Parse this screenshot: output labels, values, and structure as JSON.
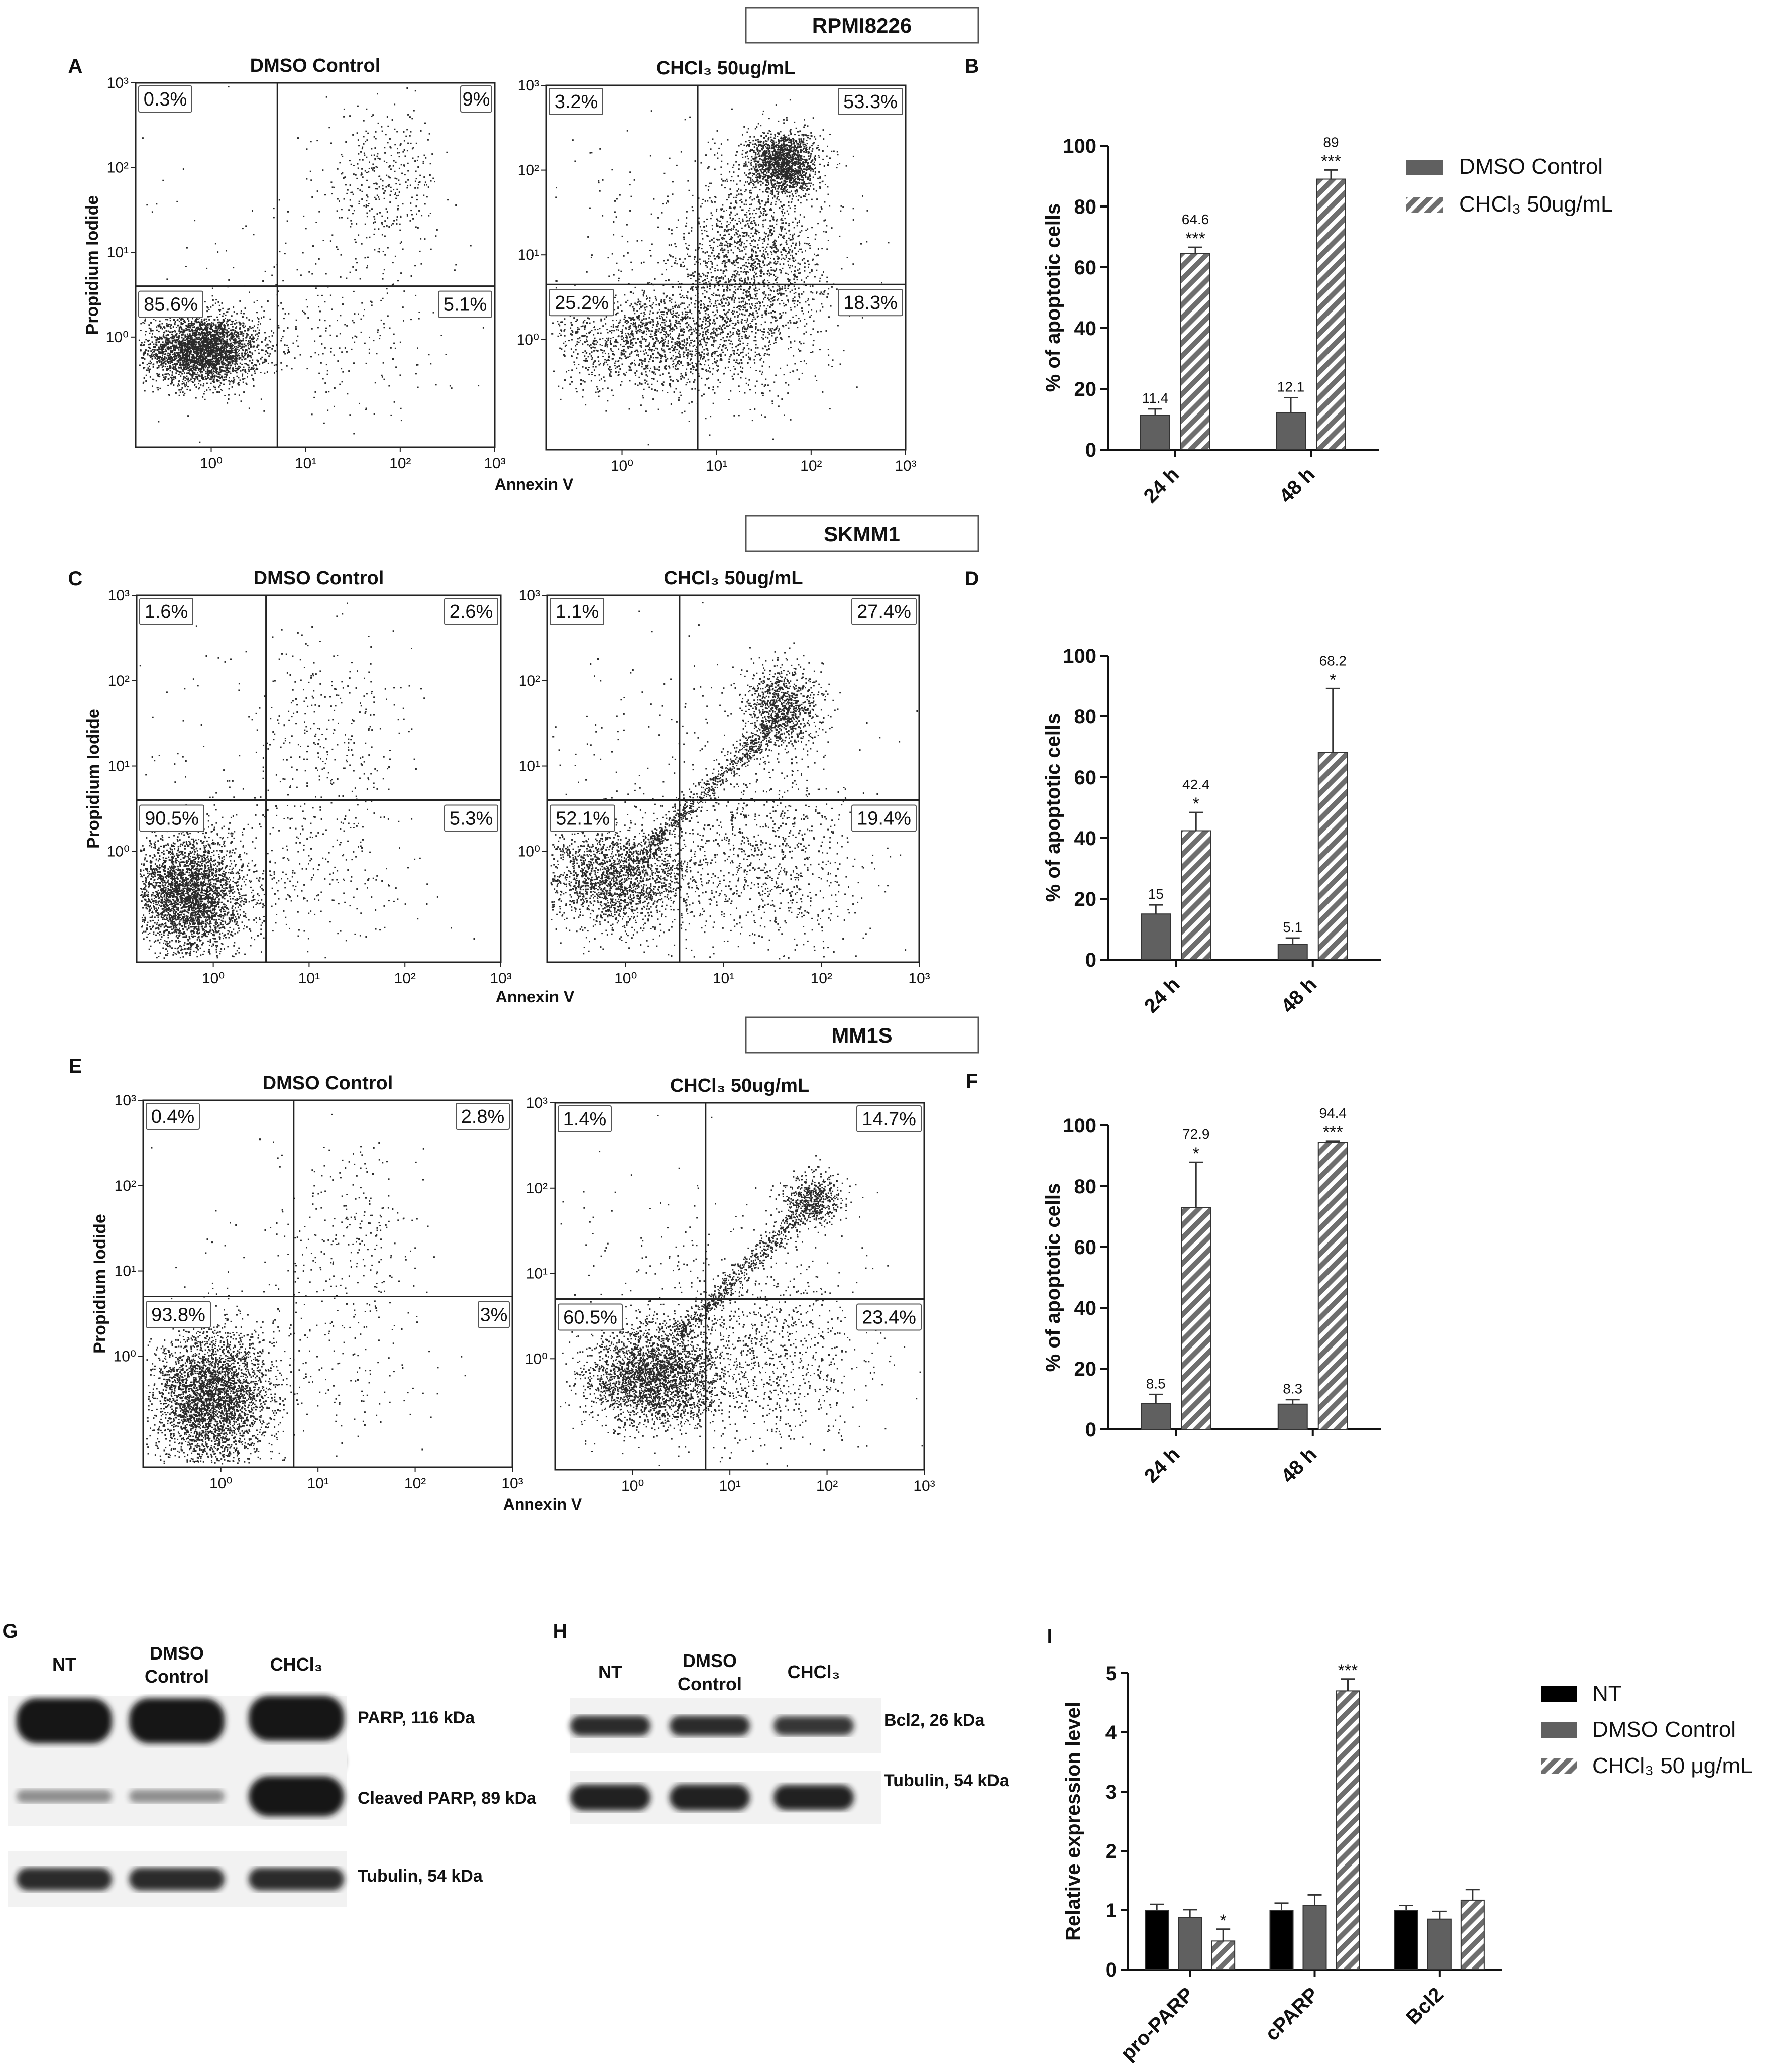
{
  "figure": {
    "cell_lines": [
      "RPMI8226",
      "SKMM1",
      "MM1S"
    ],
    "panel_letters": [
      "A",
      "B",
      "C",
      "D",
      "E",
      "F",
      "G",
      "H",
      "I"
    ],
    "colors": {
      "dmso_bar": "#606060",
      "chcl3_bar": "#8a8a8a",
      "nt_bar": "#000000",
      "axis": "#111111",
      "dots": "#2a2a2a",
      "blot_band": "#181818",
      "blot_bg": "#f2f2f2"
    }
  },
  "chart_data": [
    {
      "panel": "A",
      "type": "scatter",
      "cell_line": "RPMI8226",
      "title": "DMSO Control",
      "xlabel": "",
      "ylabel": "Propidium Iodide",
      "x_scale": "log",
      "y_scale": "log",
      "x_ticks": [
        "10⁰",
        "10¹",
        "10²",
        "10³"
      ],
      "y_ticks": [
        "10⁰",
        "10¹",
        "10²",
        "10³"
      ],
      "quadrants": {
        "upper_left": "0.3%",
        "upper_right": "9%",
        "lower_left": "85.6%",
        "lower_right": "5.1%"
      },
      "x_gate_log": 0.7,
      "y_gate_log": 0.6,
      "populations": [
        {
          "cx": -0.1,
          "cy": -0.15,
          "sx": 0.3,
          "sy": 0.2,
          "n": 3000
        },
        {
          "cx": 1.8,
          "cy": 1.8,
          "sx": 0.3,
          "sy": 0.45,
          "n": 400
        },
        {
          "cx": 1.3,
          "cy": 0.0,
          "sx": 0.6,
          "sy": 0.5,
          "n": 220
        },
        {
          "cx": 0.3,
          "cy": 0.8,
          "sx": 0.8,
          "sy": 0.8,
          "n": 80
        }
      ]
    },
    {
      "panel": "A",
      "type": "scatter",
      "cell_line": "RPMI8226",
      "title": "CHCl₃ 50ug/mL",
      "xlabel": "Annexin V",
      "ylabel": "",
      "x_scale": "log",
      "y_scale": "log",
      "x_ticks": [
        "10⁰",
        "10¹",
        "10²",
        "10³"
      ],
      "y_ticks": [
        "10⁰",
        "10¹",
        "10²",
        "10³"
      ],
      "quadrants": {
        "upper_left": "3.2%",
        "upper_right": "53.3%",
        "lower_left": "25.2%",
        "lower_right": "18.3%"
      },
      "x_gate_log": 0.8,
      "y_gate_log": 0.65,
      "populations": [
        {
          "cx": 0.3,
          "cy": 0.0,
          "sx": 0.55,
          "sy": 0.3,
          "n": 1400
        },
        {
          "cx": 1.7,
          "cy": 2.1,
          "sx": 0.18,
          "sy": 0.18,
          "n": 1500
        },
        {
          "cx": 1.45,
          "cy": 1.1,
          "sx": 0.35,
          "sy": 0.55,
          "n": 1200
        },
        {
          "cx": 1.2,
          "cy": 0.3,
          "sx": 0.5,
          "sy": 0.5,
          "n": 800
        },
        {
          "cx": 0.5,
          "cy": 1.2,
          "sx": 0.7,
          "sy": 0.8,
          "n": 200
        }
      ]
    },
    {
      "panel": "B",
      "type": "bar",
      "cell_line": "RPMI8226",
      "categories": [
        "24 h",
        "48 h"
      ],
      "ylabel": "% of apoptotic cells",
      "ylim": [
        0,
        100
      ],
      "yticks": [
        "0",
        "20",
        "40",
        "60",
        "80",
        "100"
      ],
      "series": [
        {
          "name": "DMSO Control",
          "values": [
            11.4,
            12.1
          ],
          "errors": [
            2,
            5
          ],
          "labels": [
            "11.4",
            "12.1"
          ],
          "sig": [
            "",
            ""
          ]
        },
        {
          "name": "CHCl₃ 50ug/mL",
          "values": [
            64.6,
            89
          ],
          "errors": [
            2,
            3
          ],
          "labels": [
            "64.6",
            "89"
          ],
          "sig": [
            "***",
            "***"
          ]
        }
      ]
    },
    {
      "panel": "C",
      "type": "scatter",
      "cell_line": "SKMM1",
      "title": "DMSO Control",
      "xlabel": "",
      "ylabel": "Propidium Iodide",
      "x_scale": "log",
      "y_scale": "log",
      "x_ticks": [
        "10⁰",
        "10¹",
        "10²",
        "10³"
      ],
      "y_ticks": [
        "10⁰",
        "10¹",
        "10²",
        "10³"
      ],
      "quadrants": {
        "upper_left": "1.6%",
        "upper_right": "2.6%",
        "lower_left": "90.5%",
        "lower_right": "5.3%"
      },
      "x_gate_log": 0.55,
      "y_gate_log": 0.6,
      "populations": [
        {
          "cx": -0.25,
          "cy": -0.5,
          "sx": 0.3,
          "sy": 0.35,
          "n": 3200
        },
        {
          "cx": 1.2,
          "cy": 1.4,
          "sx": 0.4,
          "sy": 0.6,
          "n": 260
        },
        {
          "cx": 1.0,
          "cy": -0.2,
          "sx": 0.55,
          "sy": 0.55,
          "n": 300
        },
        {
          "cx": 0.3,
          "cy": 0.9,
          "sx": 0.8,
          "sy": 0.8,
          "n": 90
        }
      ]
    },
    {
      "panel": "C",
      "type": "scatter",
      "cell_line": "SKMM1",
      "title": "CHCl₃ 50ug/mL",
      "xlabel": "Annexin V",
      "ylabel": "",
      "x_scale": "log",
      "y_scale": "log",
      "x_ticks": [
        "10⁰",
        "10¹",
        "10²",
        "10³"
      ],
      "y_ticks": [
        "10⁰",
        "10¹",
        "10²",
        "10³"
      ],
      "quadrants": {
        "upper_left": "1.1%",
        "upper_right": "27.4%",
        "lower_left": "52.1%",
        "lower_right": "19.4%"
      },
      "x_gate_log": 0.55,
      "y_gate_log": 0.6,
      "populations": [
        {
          "cx": -0.1,
          "cy": -0.3,
          "sx": 0.4,
          "sy": 0.3,
          "n": 2000
        },
        {
          "cx": 1.6,
          "cy": 1.7,
          "sx": 0.2,
          "sy": 0.25,
          "n": 900
        },
        {
          "cx": 1.4,
          "cy": -0.1,
          "sx": 0.5,
          "sy": 0.55,
          "n": 900
        },
        {
          "cx": 0.5,
          "cy": 1.0,
          "sx": 0.9,
          "sy": 0.8,
          "n": 200
        }
      ],
      "diagonal": {
        "x0": 0.0,
        "y0": -0.2,
        "x1": 1.6,
        "y1": 1.6,
        "n": 700
      }
    },
    {
      "panel": "D",
      "type": "bar",
      "cell_line": "SKMM1",
      "categories": [
        "24 h",
        "48 h"
      ],
      "ylabel": "% of apoptotic cells",
      "ylim": [
        0,
        100
      ],
      "yticks": [
        "0",
        "20",
        "40",
        "60",
        "80",
        "100"
      ],
      "series": [
        {
          "name": "DMSO Control",
          "values": [
            15,
            5.1
          ],
          "errors": [
            3,
            2
          ],
          "labels": [
            "15",
            "5.1"
          ],
          "sig": [
            "",
            ""
          ]
        },
        {
          "name": "CHCl₃ 50ug/mL",
          "values": [
            42.4,
            68.2
          ],
          "errors": [
            6,
            21
          ],
          "labels": [
            "42.4",
            "68.2"
          ],
          "sig": [
            "*",
            "*"
          ]
        }
      ]
    },
    {
      "panel": "E",
      "type": "scatter",
      "cell_line": "MM1S",
      "title": "DMSO Control",
      "xlabel": "",
      "ylabel": "Propidium Iodide",
      "x_scale": "log",
      "y_scale": "log",
      "x_ticks": [
        "10⁰",
        "10¹",
        "10²",
        "10³"
      ],
      "y_ticks": [
        "10⁰",
        "10¹",
        "10²",
        "10³"
      ],
      "quadrants": {
        "upper_left": "0.4%",
        "upper_right": "2.8%",
        "lower_left": "93.8%",
        "lower_right": "3%"
      },
      "x_gate_log": 0.75,
      "y_gate_log": 0.7,
      "populations": [
        {
          "cx": -0.1,
          "cy": -0.5,
          "sx": 0.3,
          "sy": 0.4,
          "n": 3400
        },
        {
          "cx": 1.3,
          "cy": 1.5,
          "sx": 0.35,
          "sy": 0.5,
          "n": 220
        },
        {
          "cx": 1.2,
          "cy": 0.0,
          "sx": 0.5,
          "sy": 0.5,
          "n": 160
        },
        {
          "cx": 0.3,
          "cy": 1.0,
          "sx": 0.8,
          "sy": 0.8,
          "n": 60
        }
      ]
    },
    {
      "panel": "E",
      "type": "scatter",
      "cell_line": "MM1S",
      "title": "CHCl₃ 50ug/mL",
      "xlabel": "Annexin V",
      "ylabel": "",
      "x_scale": "log",
      "y_scale": "log",
      "x_ticks": [
        "10⁰",
        "10¹",
        "10²",
        "10³"
      ],
      "y_ticks": [
        "10⁰",
        "10¹",
        "10²",
        "10³"
      ],
      "quadrants": {
        "upper_left": "1.4%",
        "upper_right": "14.7%",
        "lower_left": "60.5%",
        "lower_right": "23.4%"
      },
      "x_gate_log": 0.75,
      "y_gate_log": 0.7,
      "populations": [
        {
          "cx": 0.2,
          "cy": -0.2,
          "sx": 0.35,
          "sy": 0.3,
          "n": 2600
        },
        {
          "cx": 1.85,
          "cy": 1.85,
          "sx": 0.15,
          "sy": 0.15,
          "n": 500
        },
        {
          "cx": 1.4,
          "cy": 0.0,
          "sx": 0.55,
          "sy": 0.55,
          "n": 900
        },
        {
          "cx": 0.5,
          "cy": 1.0,
          "sx": 0.9,
          "sy": 0.8,
          "n": 180
        }
      ],
      "diagonal": {
        "x0": 0.4,
        "y0": 0.2,
        "x1": 1.8,
        "y1": 1.8,
        "n": 600
      }
    },
    {
      "panel": "F",
      "type": "bar",
      "cell_line": "MM1S",
      "categories": [
        "24 h",
        "48 h"
      ],
      "ylabel": "% of apoptotic cells",
      "ylim": [
        0,
        100
      ],
      "yticks": [
        "0",
        "20",
        "40",
        "60",
        "80",
        "100"
      ],
      "series": [
        {
          "name": "DMSO Control",
          "values": [
            8.5,
            8.3
          ],
          "errors": [
            3,
            1.5
          ],
          "labels": [
            "8.5",
            "8.3"
          ],
          "sig": [
            "",
            ""
          ]
        },
        {
          "name": "CHCl₃ 50ug/mL",
          "values": [
            72.9,
            94.4
          ],
          "errors": [
            15,
            0.5
          ],
          "labels": [
            "72.9",
            "94.4"
          ],
          "sig": [
            "*",
            "***"
          ]
        }
      ]
    },
    {
      "panel": "I",
      "type": "bar",
      "categories": [
        "pro-PARP",
        "cPARP",
        "Bcl2"
      ],
      "ylabel": "Relative expression level",
      "ylim": [
        0,
        5
      ],
      "yticks": [
        "0",
        "1",
        "2",
        "3",
        "4",
        "5"
      ],
      "series": [
        {
          "name": "NT",
          "values": [
            1.0,
            1.0,
            1.0
          ],
          "errors": [
            0.1,
            0.12,
            0.08
          ],
          "sig": [
            "",
            "",
            ""
          ]
        },
        {
          "name": "DMSO Control",
          "values": [
            0.88,
            1.08,
            0.85
          ],
          "errors": [
            0.13,
            0.18,
            0.13
          ],
          "sig": [
            "",
            "",
            ""
          ]
        },
        {
          "name": "CHCl₃ 50 μg/mL",
          "values": [
            0.48,
            4.7,
            1.17
          ],
          "errors": [
            0.2,
            0.2,
            0.18
          ],
          "sig": [
            "*",
            "***",
            ""
          ]
        }
      ]
    }
  ],
  "legends": {
    "top": [
      "DMSO Control",
      "CHCl₃ 50ug/mL"
    ],
    "bottom": [
      "NT",
      "DMSO Control",
      "CHCl₃ 50 μg/mL"
    ]
  },
  "blot_g": {
    "lanes": [
      "NT",
      "DMSO\nControl",
      "CHCl₃"
    ],
    "bands": [
      "PARP, 116 kDa",
      "Cleaved PARP, 89 kDa",
      "Tubulin, 54 kDa"
    ]
  },
  "blot_h": {
    "lanes": [
      "NT",
      "DMSO\nControl",
      "CHCl₃"
    ],
    "bands": [
      "Bcl2, 26 kDa",
      "Tubulin, 54 kDa"
    ]
  }
}
